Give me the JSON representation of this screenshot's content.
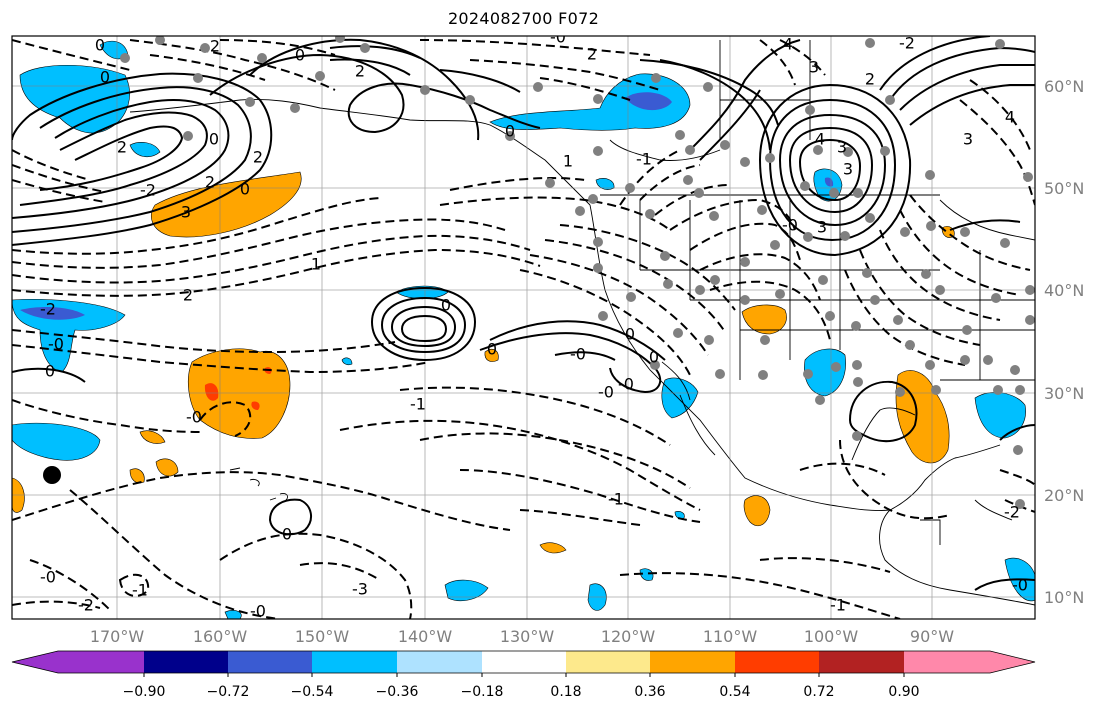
{
  "title": "2024082700 F072",
  "lon_labels": [
    "170°W",
    "160°W",
    "150°W",
    "140°W",
    "130°W",
    "120°W",
    "110°W",
    "100°W",
    "90°W"
  ],
  "lat_labels": [
    "60°N",
    "50°N",
    "40°N",
    "30°N",
    "20°N",
    "10°N"
  ],
  "colorbar": {
    "colors": [
      "#9932cc",
      "#00008b",
      "#3a5bd2",
      "#00bfff",
      "#aee2ff",
      "#ffffff",
      "#fde98c",
      "#ffa500",
      "#ff3d00",
      "#b22222",
      "#ff88aa"
    ],
    "tick_labels": [
      "−0.90",
      "−0.72",
      "−0.54",
      "−0.36",
      "−0.18",
      "0.18",
      "0.36",
      "0.54",
      "0.72",
      "0.90"
    ]
  },
  "contour_labels": [
    "0",
    "2",
    "2",
    "0",
    "0",
    "2",
    "2",
    "-2",
    "0",
    "2",
    "0",
    "3",
    "-0",
    "0",
    "-2",
    "-0",
    "0",
    "2",
    "1",
    "-1",
    "-3",
    "-2",
    "-0",
    "-0",
    "-1",
    "-0",
    "-0",
    "-1",
    "0",
    "0",
    "0",
    "0",
    "-0",
    "4",
    "3",
    "2",
    "-2",
    "3",
    "4",
    "3",
    "4",
    "3",
    "-0",
    "3",
    "-1",
    "-2",
    "1",
    "0",
    "2",
    "-1",
    "-0",
    "-0"
  ],
  "station_marker": "black-dot"
}
